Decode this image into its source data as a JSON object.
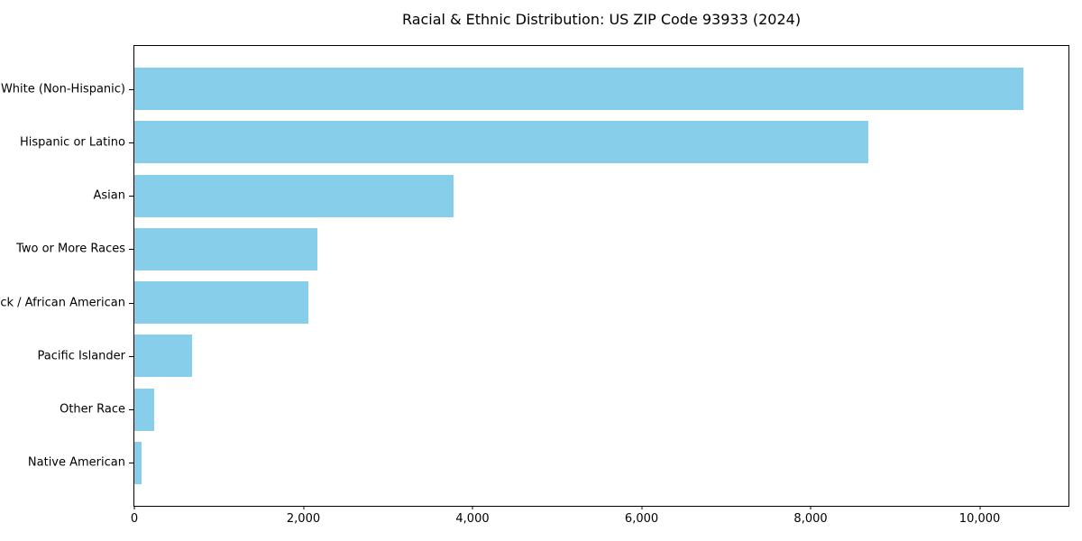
{
  "title": "Racial & Ethnic Distribution: US ZIP Code 93933 (2024)",
  "chart_data": {
    "type": "bar",
    "orientation": "horizontal",
    "title": "Racial & Ethnic Distribution: US ZIP Code 93933 (2024)",
    "xlabel": "",
    "ylabel": "",
    "categories": [
      "White (Non-Hispanic)",
      "Hispanic or Latino",
      "Asian",
      "Two or More Races",
      "Black / African American",
      "Pacific Islander",
      "Other Race",
      "Native American"
    ],
    "values": [
      10520,
      8680,
      3780,
      2170,
      2060,
      680,
      230,
      90
    ],
    "xlim": [
      0,
      11050
    ],
    "xticks": [
      0,
      2000,
      4000,
      6000,
      8000,
      10000
    ],
    "xtick_labels": [
      "0",
      "2,000",
      "4,000",
      "6,000",
      "8,000",
      "10,000"
    ],
    "bar_color": "#87CEEB",
    "background_color": "#ffffff",
    "spine_color": "#000000",
    "text_color": "#000000",
    "grid": false,
    "legend": null
  }
}
